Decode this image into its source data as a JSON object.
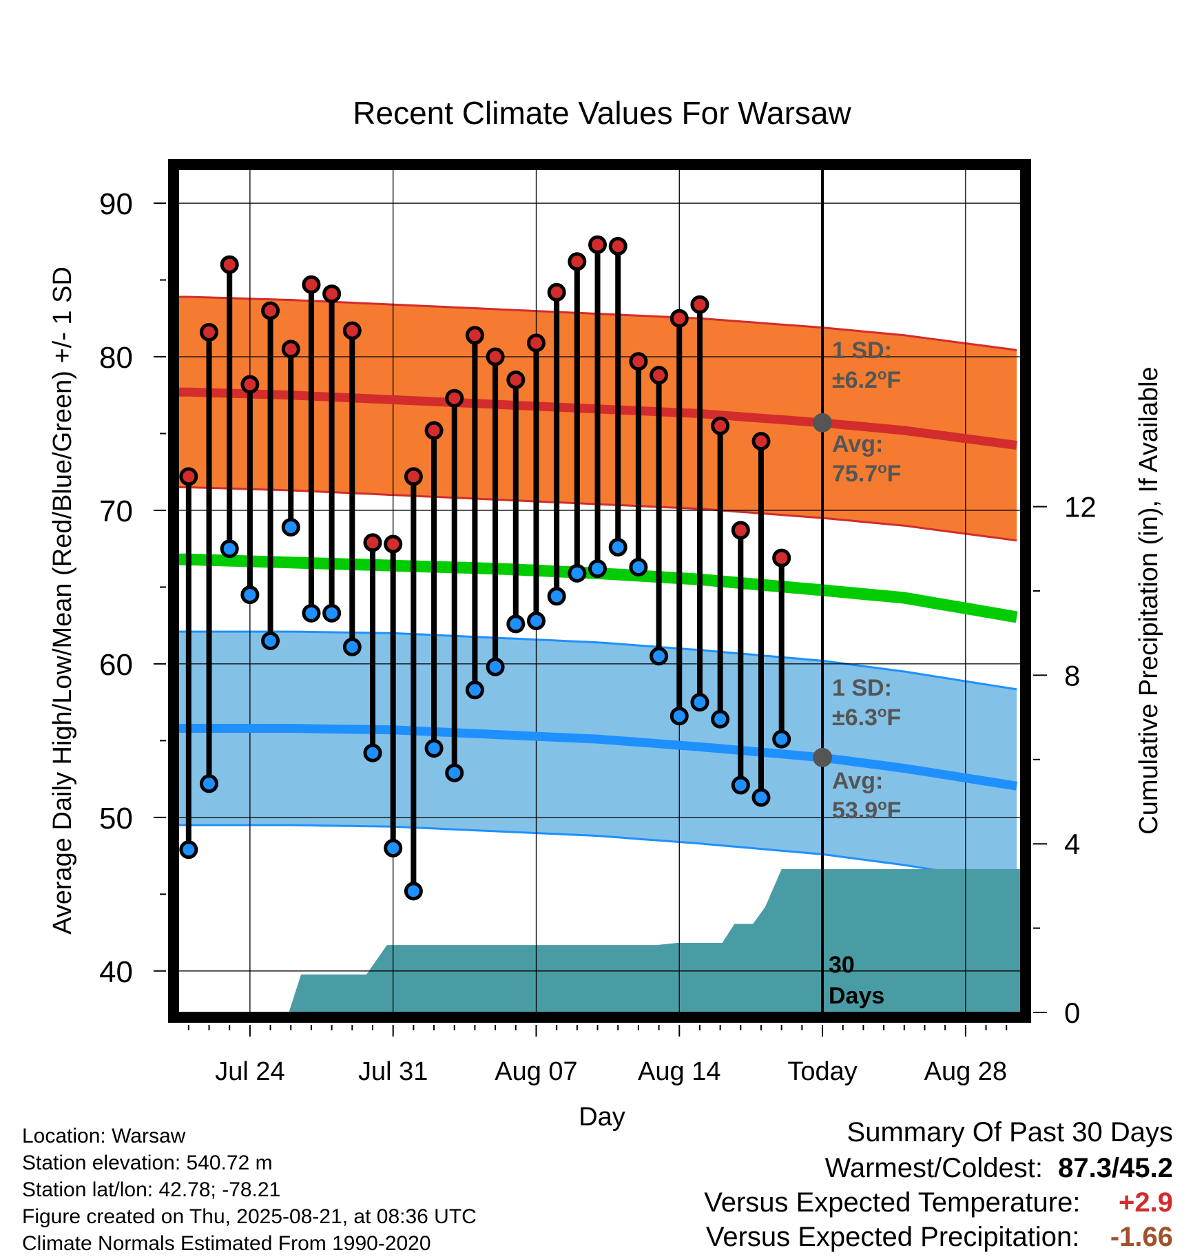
{
  "chart_data": {
    "type": "line",
    "title": "Recent Climate Values For Warsaw",
    "xlabel": "Day",
    "ylabel": "Average Daily High/Low/Mean (Red/Blue/Green) +/- 1 SD",
    "y2label": "Cumulative Precipitation (in), If Available",
    "ylim": [
      37.3,
      92.2
    ],
    "y2lim": [
      0,
      20
    ],
    "yticks": [
      40,
      50,
      60,
      70,
      80,
      90
    ],
    "y2ticks": [
      0,
      4,
      8,
      12
    ],
    "xlim_day": [
      -0.5,
      40.7
    ],
    "grid": true,
    "x_ticks": [
      {
        "day": 3,
        "label": "Jul 24"
      },
      {
        "day": 10,
        "label": "Jul 31"
      },
      {
        "day": 17,
        "label": "Aug 07"
      },
      {
        "day": 24,
        "label": "Aug 14"
      },
      {
        "day": 31,
        "label": "Today"
      },
      {
        "day": 38,
        "label": "Aug 28"
      }
    ],
    "today_day": 31,
    "observed": {
      "start_date": "Jul 22",
      "highs": [
        72.2,
        81.6,
        86.0,
        78.2,
        83.0,
        80.5,
        84.7,
        84.1,
        81.7,
        67.9,
        67.8,
        72.2,
        75.2,
        77.3,
        81.4,
        80.0,
        78.5,
        80.9,
        84.2,
        86.2,
        87.3,
        87.2,
        79.7,
        78.8,
        82.5,
        83.4,
        75.5,
        68.7,
        74.5,
        66.9
      ],
      "lows": [
        47.9,
        52.2,
        67.5,
        64.5,
        61.5,
        68.9,
        63.3,
        63.3,
        61.1,
        54.2,
        48.0,
        45.2,
        54.5,
        52.9,
        58.3,
        59.8,
        62.6,
        62.8,
        64.4,
        65.9,
        66.2,
        67.6,
        66.3,
        60.5,
        56.6,
        57.5,
        56.4,
        52.1,
        51.3,
        55.1
      ]
    },
    "normals": {
      "days": [
        0,
        5,
        10,
        15,
        20,
        25,
        31,
        35,
        40.7
      ],
      "high_avg": [
        77.7,
        77.5,
        77.2,
        76.9,
        76.6,
        76.3,
        75.7,
        75.2,
        74.2
      ],
      "high_sd": 6.2,
      "mean_avg": [
        66.8,
        66.6,
        66.4,
        66.2,
        65.9,
        65.5,
        64.8,
        64.3,
        63.0
      ],
      "low_avg": [
        55.8,
        55.8,
        55.7,
        55.4,
        55.1,
        54.6,
        53.9,
        53.2,
        52.0
      ],
      "low_sd": 6.3
    },
    "precip_cumulative": {
      "days": [
        4.9,
        5.5,
        8.7,
        9.7,
        22.9,
        23.9,
        26.1,
        26.7,
        27.6,
        28.2,
        29.0,
        30.5
      ],
      "values": [
        0,
        0.9,
        0.9,
        1.6,
        1.6,
        1.65,
        1.65,
        2.1,
        2.1,
        2.5,
        3.4,
        3.4
      ]
    },
    "annotations": {
      "high_sd_label": "1 SD:",
      "high_sd_value": "±6.2",
      "high_avg_label": "Avg:",
      "high_avg_value": "75.7",
      "low_sd_label": "1 SD:",
      "low_sd_value": "±6.3",
      "low_avg_label": "Avg:",
      "low_avg_value": "53.9",
      "degree_unit": "o",
      "temp_unit": "F",
      "days_label_1": "30",
      "days_label_2": "Days"
    },
    "colors": {
      "high_band": "#f47b30",
      "high_line": "#d32c2c",
      "mean_line": "#00cc00",
      "low_band": "#84c1e7",
      "low_line": "#1e90ff",
      "precip": "#4a9ca4",
      "today_marker": "#555555",
      "annotation_text": "#555555"
    }
  },
  "info": {
    "location": "Location: Warsaw",
    "elevation": "Station elevation: 540.72 m",
    "latlon": "Station lat/lon: 42.78; -78.21",
    "created": "Figure created on Thu, 2025-08-21, at 08:36 UTC",
    "normals_period": "Climate Normals Estimated From 1990-2020"
  },
  "summary": {
    "title": "Summary Of Past 30 Days",
    "warm_cold_label": "Warmest/Coldest:",
    "warm_cold_value": "87.3/45.2",
    "temp_label": "Versus Expected Temperature:",
    "temp_value": "+2.9",
    "temp_color": "#d32c2c",
    "precip_label": "Versus Expected Precipitation:",
    "precip_value": "-1.66",
    "precip_color": "#a0522d"
  }
}
